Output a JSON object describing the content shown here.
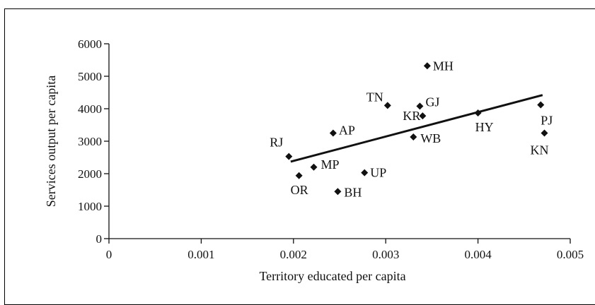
{
  "chart_data": {
    "type": "scatter",
    "title": "",
    "xlabel": "Territory educated per capita",
    "ylabel": "Services output per capita",
    "xlim": [
      0,
      0.005
    ],
    "ylim": [
      0,
      6000
    ],
    "x_ticks": [
      "0",
      "0.001",
      "0.002",
      "0.003",
      "0.004",
      "0.005"
    ],
    "y_ticks": [
      "0",
      "1000",
      "2000",
      "3000",
      "4000",
      "5000",
      "6000"
    ],
    "grid": false,
    "legend": "none",
    "marker_color": "#111111",
    "points": [
      {
        "label": "MH",
        "x": 0.00345,
        "y": 5320
      },
      {
        "label": "TN",
        "x": 0.00302,
        "y": 4100
      },
      {
        "label": "GJ",
        "x": 0.00337,
        "y": 4080
      },
      {
        "label": "KR",
        "x": 0.0034,
        "y": 3780
      },
      {
        "label": "PJ",
        "x": 0.00468,
        "y": 4120
      },
      {
        "label": "HY",
        "x": 0.004,
        "y": 3870
      },
      {
        "label": "AP",
        "x": 0.00243,
        "y": 3250
      },
      {
        "label": "WB",
        "x": 0.0033,
        "y": 3130
      },
      {
        "label": "KN",
        "x": 0.00472,
        "y": 3250
      },
      {
        "label": "RJ",
        "x": 0.00195,
        "y": 2530
      },
      {
        "label": "MP",
        "x": 0.00222,
        "y": 2200
      },
      {
        "label": "UP",
        "x": 0.00277,
        "y": 2030
      },
      {
        "label": "OR",
        "x": 0.00206,
        "y": 1940
      },
      {
        "label": "BH",
        "x": 0.00248,
        "y": 1450
      }
    ],
    "trendline": {
      "x": [
        0.00197,
        0.0047
      ],
      "y": [
        2370,
        4420
      ]
    }
  }
}
